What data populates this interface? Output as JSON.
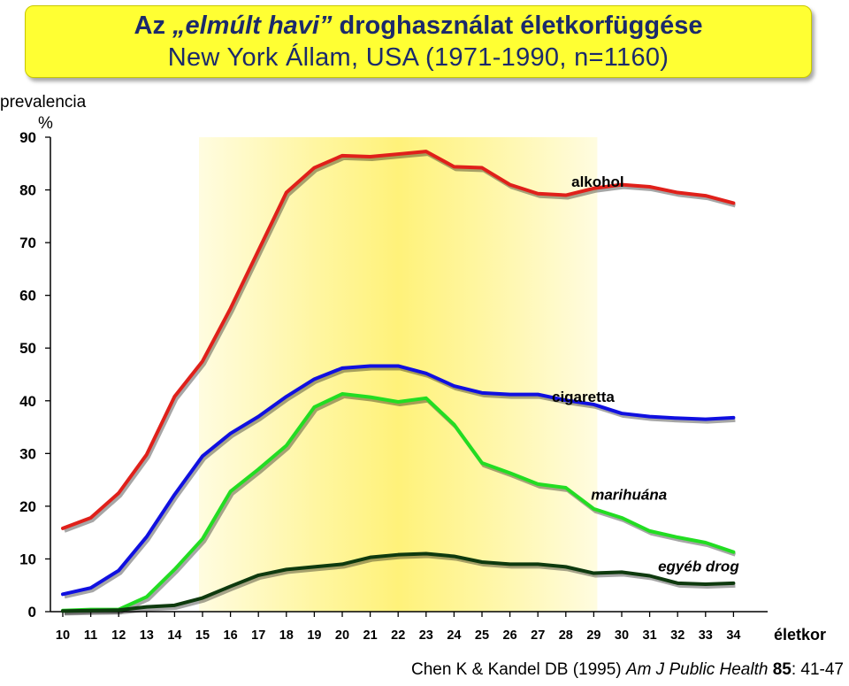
{
  "title": {
    "line1_a": "Az ",
    "line1_italic": "„elmúlt havi”",
    "line1_b": " droghasználat életkorfüggése",
    "line2": "New York Állam, USA (1971-1990, n=1160)"
  },
  "chart_data": {
    "type": "line",
    "ylabel": "prevalencia",
    "yunit": "%",
    "xlabel": "életkor",
    "ylim": [
      0,
      90
    ],
    "yticks": [
      0,
      10,
      20,
      30,
      40,
      50,
      60,
      70,
      80,
      90
    ],
    "x": [
      10,
      11,
      12,
      13,
      14,
      15,
      16,
      17,
      18,
      19,
      20,
      21,
      22,
      23,
      24,
      25,
      26,
      27,
      28,
      29,
      30,
      31,
      32,
      33,
      34
    ],
    "highlight_range": [
      15,
      29
    ],
    "series": [
      {
        "name": "alkohol",
        "label": "alkohol",
        "color": "#e0201a",
        "italic": false,
        "values": [
          15.8,
          17.8,
          22.5,
          29.8,
          40.8,
          47.5,
          57.5,
          68.5,
          79.5,
          84.2,
          86.5,
          86.3,
          86.8,
          87.3,
          84.4,
          84.2,
          81.0,
          79.3,
          79.0,
          80.3,
          81.0,
          80.6,
          79.5,
          78.9,
          77.5
        ]
      },
      {
        "name": "cigaretta",
        "label": "cigaretta",
        "color": "#1010e0",
        "italic": false,
        "values": [
          3.3,
          4.5,
          7.8,
          14.2,
          22.2,
          29.5,
          33.8,
          37.0,
          40.8,
          44.1,
          46.2,
          46.6,
          46.6,
          45.2,
          42.8,
          41.5,
          41.2,
          41.2,
          40.1,
          39.3,
          37.6,
          37.0,
          36.7,
          36.5,
          36.8
        ]
      },
      {
        "name": "marihuána",
        "label": "marihuána",
        "color": "#22dd22",
        "italic": true,
        "values": [
          0.2,
          0.4,
          0.4,
          2.8,
          8.0,
          13.8,
          22.8,
          27.0,
          31.5,
          38.8,
          41.3,
          40.7,
          39.8,
          40.5,
          35.5,
          28.2,
          26.3,
          24.2,
          23.5,
          19.5,
          17.8,
          15.3,
          14.1,
          13.1,
          11.3
        ]
      },
      {
        "name": "egyéb drog",
        "label": "egyéb drog",
        "color": "#0e3a0e",
        "italic": true,
        "values": [
          0.1,
          0.2,
          0.3,
          0.9,
          1.2,
          2.6,
          4.8,
          6.9,
          8.0,
          8.5,
          9.0,
          10.3,
          10.8,
          11.0,
          10.5,
          9.4,
          9.0,
          9.0,
          8.5,
          7.3,
          7.5,
          6.8,
          5.4,
          5.2,
          5.4
        ]
      }
    ]
  },
  "citation": {
    "authors": "Chen K & Kandel DB (1995) ",
    "journal": "Am J Public Health",
    "volume": "85",
    "pages": ": 41-47"
  }
}
